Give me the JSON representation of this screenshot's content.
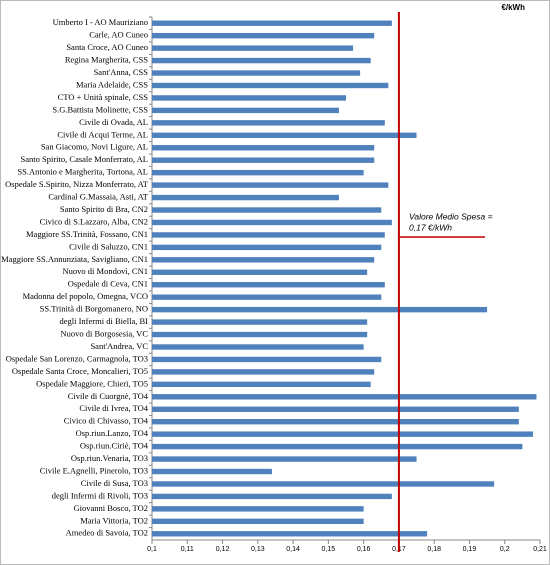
{
  "chart_data": {
    "type": "bar",
    "orientation": "horizontal",
    "unit_label": "€/kWh",
    "annotation": [
      "Valore Medio  Spesa  =",
      "0,17 €/kWh"
    ],
    "reference_line": 0.17,
    "reference_color": "#c00000",
    "color": "#4f81bd",
    "grid": false,
    "xlim": [
      0.1,
      0.21
    ],
    "xticks": [
      {
        "value": 0.1,
        "label": "0,1"
      },
      {
        "value": 0.11,
        "label": "0,11"
      },
      {
        "value": 0.12,
        "label": "0,12"
      },
      {
        "value": 0.13,
        "label": "0,13"
      },
      {
        "value": 0.14,
        "label": "0,14"
      },
      {
        "value": 0.15,
        "label": "0,15"
      },
      {
        "value": 0.16,
        "label": "0,16"
      },
      {
        "value": 0.17,
        "label": "0,17"
      },
      {
        "value": 0.18,
        "label": "0,18"
      },
      {
        "value": 0.19,
        "label": "0,19"
      },
      {
        "value": 0.2,
        "label": "0,2"
      },
      {
        "value": 0.21,
        "label": "0,21"
      }
    ],
    "categories": [
      "Umberto I - AO Mauriziano",
      "Carle, AO Cuneo",
      "Santa Croce, AO Cuneo",
      "Regina Margherita, CSS",
      "Sant'Anna, CSS",
      "Maria Adelaide, CSS",
      "CTO + Unità spinale, CSS",
      "S.G.Battista Molinette, CSS",
      "Civile di Ovada, AL",
      "Civile di Acqui Terme, AL",
      "San Giacomo, Novi Ligure, AL",
      "Santo Spirito, Casale Monferrato, AL",
      "SS.Antonio e Margherita, Tortona, AL",
      "Ospedale S.Spirito, Nizza Monferrato, AT",
      "Cardinal G.Massaia, Asti, AT",
      "Santo Spirito di Bra, CN2",
      "Civico di S.Lazzaro, Alba, CN2",
      "Maggiore SS.Trinità, Fossano, CN1",
      "Civile di Saluzzo, CN1",
      "Maggiore SS.Annunziata, Savigliano, CN1",
      "Nuovo di Mondovì, CN1",
      "Ospedale di Ceva, CN1",
      "Madonna del popolo, Omegna, VCO",
      "SS.Trinità di Borgomanero, NO",
      "degli Infermi di Biella, BI",
      "Nuovo di Borgosesia, VC",
      "Sant'Andrea, VC",
      "Ospedale San Lorenzo,  Carmagnola, TO3",
      "Ospedale Santa Croce, Moncalieri, TO5",
      "Ospedale Maggiore, Chieri, TO5",
      "Civile di Cuorgnè, TO4",
      "Civile di Ivrea, TO4",
      "Civico di Chivasso, TO4",
      "Osp.riun.Lanzo, TO4",
      "Osp.riun.Ciriè, TO4",
      "Osp.riun.Venaria, TO3",
      "Civile E.Agnelli, Pinerolo, TO3",
      "Civile di Susa, TO3",
      "degli Infermi di Rivoli, TO3",
      "Giovanni Bosco, TO2",
      "Maria Vittoria, TO2",
      "Amedeo di Savoia, TO2"
    ],
    "values": [
      0.168,
      0.163,
      0.157,
      0.162,
      0.159,
      0.167,
      0.155,
      0.153,
      0.166,
      0.175,
      0.163,
      0.163,
      0.16,
      0.167,
      0.153,
      0.165,
      0.168,
      0.166,
      0.165,
      0.163,
      0.161,
      0.166,
      0.165,
      0.195,
      0.161,
      0.161,
      0.16,
      0.165,
      0.163,
      0.162,
      0.209,
      0.204,
      0.204,
      0.208,
      0.205,
      0.175,
      0.134,
      0.197,
      0.168,
      0.16,
      0.16,
      0.178
    ]
  }
}
